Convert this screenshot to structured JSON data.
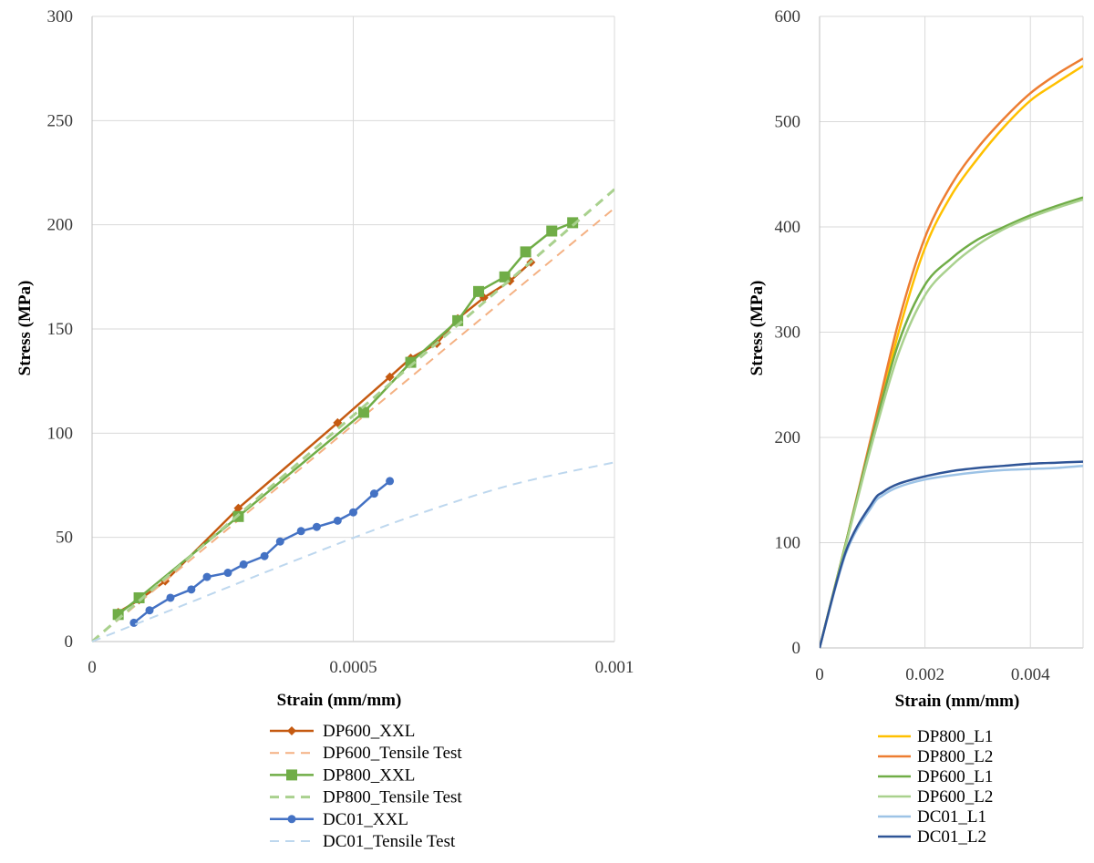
{
  "chart_data": [
    {
      "type": "line",
      "title": "",
      "xlabel": "Strain (mm/mm)",
      "ylabel": "Stress (MPa)",
      "xlim": [
        0,
        0.001
      ],
      "ylim": [
        0,
        300
      ],
      "x_ticks": [
        0,
        0.0005,
        0.001
      ],
      "x_tick_labels": [
        "0",
        "0.0005",
        "0.001"
      ],
      "y_ticks": [
        0,
        50,
        100,
        150,
        200,
        250,
        300
      ],
      "y_tick_labels": [
        "0",
        "50",
        "100",
        "150",
        "200",
        "250",
        "300"
      ],
      "grid": true,
      "legend_position": "bottom",
      "series": [
        {
          "name": "DP600_XXL",
          "color": "#c55a11",
          "dash": "solid",
          "marker": "diamond",
          "x": [
            5e-05,
            9e-05,
            0.00014,
            0.00028,
            0.00047,
            0.00057,
            0.00061,
            0.00066,
            0.0007,
            0.00075,
            0.0008,
            0.00084
          ],
          "y": [
            14,
            20,
            29,
            64,
            105,
            127,
            136,
            143,
            155,
            165,
            173,
            182
          ]
        },
        {
          "name": "DP600_Tensile Test",
          "color": "#f4b183",
          "dash": "dashed",
          "marker": "none",
          "x": [
            0,
            0.001
          ],
          "y": [
            0,
            208
          ]
        },
        {
          "name": "DP800_XXL",
          "color": "#70ad47",
          "dash": "solid",
          "marker": "square",
          "x": [
            5e-05,
            9e-05,
            0.00028,
            0.00052,
            0.00061,
            0.0007,
            0.00074,
            0.00079,
            0.00083,
            0.00088,
            0.00092
          ],
          "y": [
            13,
            21,
            60,
            110,
            134,
            154,
            168,
            175,
            187,
            197,
            201
          ]
        },
        {
          "name": "DP800_Tensile Test",
          "color": "#a9d18e",
          "dash": "dashed",
          "marker": "none",
          "x": [
            0,
            0.001
          ],
          "y": [
            0,
            217
          ]
        },
        {
          "name": "DC01_XXL",
          "color": "#4472c4",
          "dash": "solid",
          "marker": "circle",
          "x": [
            8e-05,
            0.00011,
            0.00015,
            0.00019,
            0.00022,
            0.00026,
            0.00029,
            0.00033,
            0.00036,
            0.0004,
            0.00043,
            0.00047,
            0.0005,
            0.00054,
            0.00057
          ],
          "y": [
            9,
            15,
            21,
            25,
            31,
            33,
            37,
            41,
            48,
            53,
            55,
            58,
            62,
            71,
            77
          ]
        },
        {
          "name": "DC01_Tensile Test",
          "color": "#bdd7ee",
          "dash": "dashed",
          "marker": "none",
          "x": [
            0,
            0.0002,
            0.0004,
            0.0006,
            0.0008,
            0.001
          ],
          "y": [
            0,
            20,
            40,
            59,
            75,
            86
          ]
        }
      ]
    },
    {
      "type": "line",
      "title": "",
      "xlabel": "Strain (mm/mm)",
      "ylabel": "Stress (MPa)",
      "xlim": [
        0,
        0.005
      ],
      "ylim": [
        0,
        600
      ],
      "x_ticks": [
        0,
        0.002,
        0.004
      ],
      "x_tick_labels": [
        "0",
        "0.002",
        "0.004"
      ],
      "y_ticks": [
        0,
        100,
        200,
        300,
        400,
        500,
        600
      ],
      "y_tick_labels": [
        "0",
        "100",
        "200",
        "300",
        "400",
        "500",
        "600"
      ],
      "grid": true,
      "legend_position": "bottom",
      "series": [
        {
          "name": "DP800_L1",
          "color": "#ffc000",
          "dash": "solid",
          "marker": "none",
          "x": [
            0,
            0.0005,
            0.001,
            0.0015,
            0.002,
            0.0025,
            0.003,
            0.0035,
            0.004,
            0.0045,
            0.005
          ],
          "y": [
            0,
            100,
            200,
            300,
            380,
            430,
            465,
            495,
            520,
            537,
            553
          ]
        },
        {
          "name": "DP800_L2",
          "color": "#ed7d31",
          "dash": "solid",
          "marker": "none",
          "x": [
            0,
            0.0005,
            0.001,
            0.0015,
            0.002,
            0.0025,
            0.003,
            0.0035,
            0.004,
            0.0045,
            0.005
          ],
          "y": [
            0,
            100,
            205,
            310,
            390,
            440,
            475,
            503,
            527,
            545,
            560
          ]
        },
        {
          "name": "DP600_L1",
          "color": "#70ad47",
          "dash": "solid",
          "marker": "none",
          "x": [
            0,
            0.0005,
            0.001,
            0.0015,
            0.002,
            0.0025,
            0.003,
            0.0035,
            0.004,
            0.0045,
            0.005
          ],
          "y": [
            0,
            100,
            200,
            290,
            345,
            370,
            388,
            400,
            411,
            420,
            428
          ]
        },
        {
          "name": "DP600_L2",
          "color": "#a9d18e",
          "dash": "solid",
          "marker": "none",
          "x": [
            0,
            0.0005,
            0.001,
            0.0015,
            0.002,
            0.0025,
            0.003,
            0.0035,
            0.004,
            0.0045,
            0.005
          ],
          "y": [
            0,
            98,
            195,
            280,
            335,
            363,
            383,
            398,
            409,
            418,
            426
          ]
        },
        {
          "name": "DC01_L1",
          "color": "#9dc3e6",
          "dash": "solid",
          "marker": "none",
          "x": [
            0,
            0.0005,
            0.001,
            0.0012,
            0.0015,
            0.002,
            0.0025,
            0.003,
            0.0035,
            0.004,
            0.0045,
            0.005
          ],
          "y": [
            0,
            90,
            135,
            145,
            153,
            160,
            164,
            167,
            169,
            170,
            171,
            173
          ]
        },
        {
          "name": "DC01_L2",
          "color": "#2f5597",
          "dash": "solid",
          "marker": "none",
          "x": [
            0,
            0.0005,
            0.001,
            0.0012,
            0.0015,
            0.002,
            0.0025,
            0.003,
            0.0035,
            0.004,
            0.0045,
            0.005
          ],
          "y": [
            0,
            92,
            138,
            148,
            156,
            163,
            168,
            171,
            173,
            175,
            176,
            177
          ]
        }
      ]
    }
  ]
}
